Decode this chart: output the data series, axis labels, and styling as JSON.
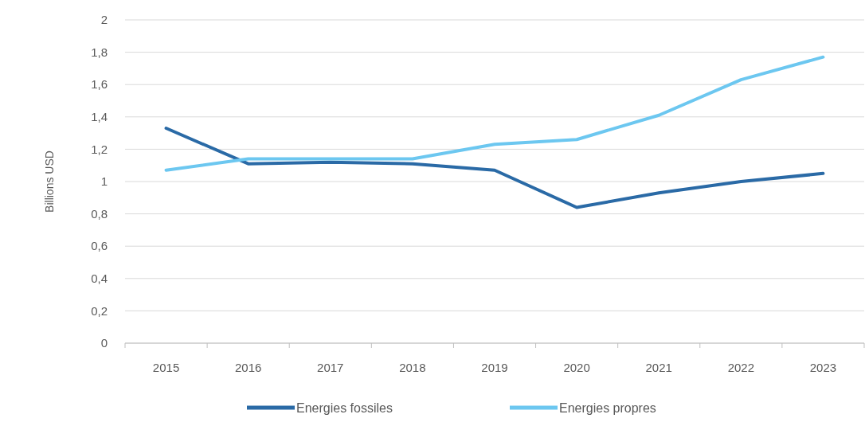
{
  "chart_data": {
    "type": "line",
    "ylabel": "Billions USD",
    "categories": [
      "2015",
      "2016",
      "2017",
      "2018",
      "2019",
      "2020",
      "2021",
      "2022",
      "2023"
    ],
    "series": [
      {
        "name": "Energies fossiles",
        "color": "#2a6aa6",
        "values": [
          1.33,
          1.11,
          1.12,
          1.11,
          1.07,
          0.84,
          0.93,
          1.0,
          1.05
        ]
      },
      {
        "name": "Energies propres",
        "color": "#6cc7f0",
        "values": [
          1.07,
          1.14,
          1.14,
          1.14,
          1.23,
          1.26,
          1.41,
          1.63,
          1.77
        ]
      }
    ],
    "ylim": [
      0,
      2
    ],
    "yticks": [
      0,
      {
        "value": 0.2,
        "label": "0,2"
      },
      {
        "value": 0.4,
        "label": "0,4"
      },
      {
        "value": 0.6,
        "label": "0,6"
      },
      {
        "value": 0.8,
        "label": "0,8"
      },
      1,
      {
        "value": 1.2,
        "label": "1,2"
      },
      {
        "value": 1.4,
        "label": "1,4"
      },
      {
        "value": 1.6,
        "label": "1,6"
      },
      {
        "value": 1.8,
        "label": "1,8"
      },
      2
    ],
    "grid": "y",
    "legend": "bottom",
    "marker": "none",
    "line_style": "solid"
  }
}
